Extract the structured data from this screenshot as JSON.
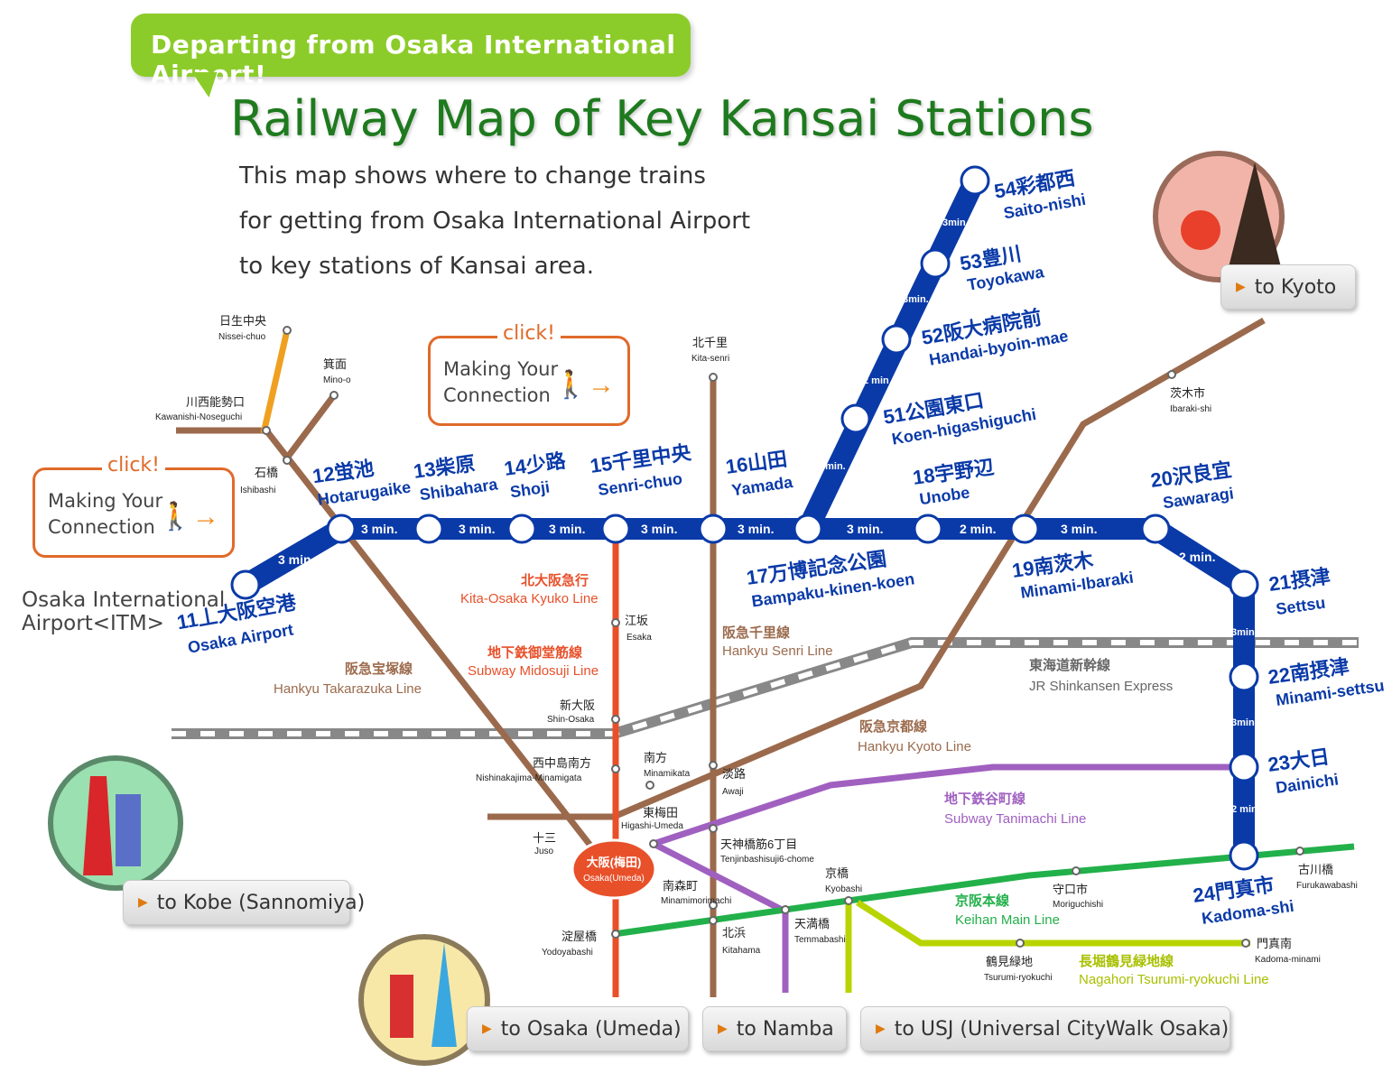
{
  "header": {
    "banner": "Departing from Osaka International Airport!",
    "title": "Railway Map of Key Kansai Stations",
    "intro_lines": [
      "This map shows where to change trains",
      "for getting from  Osaka International Airport",
      "to key stations of  Kansai area."
    ]
  },
  "click_boxes": [
    {
      "click": "click!",
      "line1": "Making Your",
      "line2": "Connection"
    },
    {
      "click": "click!",
      "line1": "Making Your",
      "line2": "Connection"
    }
  ],
  "buttons": {
    "kyoto": "to Kyoto",
    "kobe": "to Kobe (Sannomiya)",
    "osaka": "to Osaka (Umeda)",
    "namba": "to Namba",
    "usj": "to USJ (Universal CityWalk Osaka)"
  },
  "airport_label": {
    "line1": "Osaka International",
    "line2": "Airport<ITM>"
  },
  "colors": {
    "monorail": "#0a3aa8",
    "hankyu": "#9b6a4c",
    "kita_osaka": "#e8502a",
    "tanimachi": "#a060c0",
    "keihan": "#22b04a",
    "nagahori": "#b8d400",
    "nose": "#f0a020",
    "shinkansen": "#888888",
    "green_title": "#1e7a1e"
  },
  "monorail_stations": [
    {
      "num": "11",
      "jp": "大阪空港",
      "en": "Osaka Airport",
      "sub": "丄"
    },
    {
      "num": "12",
      "jp": "蛍池",
      "en": "Hotarugaike"
    },
    {
      "num": "13",
      "jp": "柴原",
      "en": "Shibahara"
    },
    {
      "num": "14",
      "jp": "少路",
      "en": "Shoji"
    },
    {
      "num": "15",
      "jp": "千里中央",
      "en": "Senri-chuo"
    },
    {
      "num": "16",
      "jp": "山田",
      "en": "Yamada"
    },
    {
      "num": "17",
      "jp": "万博記念公園",
      "en": "Bampaku-kinen-koen"
    },
    {
      "num": "18",
      "jp": "宇野辺",
      "en": "Unobe"
    },
    {
      "num": "19",
      "jp": "南茨木",
      "en": "Minami-Ibaraki"
    },
    {
      "num": "20",
      "jp": "沢良宜",
      "en": "Sawaragi"
    },
    {
      "num": "21",
      "jp": "摂津",
      "en": "Settsu"
    },
    {
      "num": "22",
      "jp": "南摂津",
      "en": "Minami-settsu"
    },
    {
      "num": "23",
      "jp": "大日",
      "en": "Dainichi"
    },
    {
      "num": "24",
      "jp": "門真市",
      "en": "Kadoma-shi"
    },
    {
      "num": "51",
      "jp": "公園東口",
      "en": "Koen-higashiguchi"
    },
    {
      "num": "52",
      "jp": "阪大病院前",
      "en": "Handai-byoin-mae"
    },
    {
      "num": "53",
      "jp": "豊川",
      "en": "Toyokawa"
    },
    {
      "num": "54",
      "jp": "彩都西",
      "en": "Saito-nishi"
    }
  ],
  "times": [
    "3 min.",
    "2 min.",
    "3min.",
    "2 min",
    "3 min"
  ],
  "line_names": {
    "kita_osaka_jp": "北大阪急行",
    "kita_osaka_en": "Kita-Osaka Kyuko Line",
    "midosuji_jp": "地下鉄御堂筋線",
    "midosuji_en": "Subway Midosuji Line",
    "senri_jp": "阪急千里線",
    "senri_en": "Hankyu Senri Line",
    "takarazuka_jp": "阪急宝塚線",
    "takarazuka_en": "Hankyu Takarazuka Line",
    "shinkansen_jp": "東海道新幹線",
    "shinkansen_en": "JR Shinkansen Express",
    "kyoto_jp": "阪急京都線",
    "kyoto_en": "Hankyu Kyoto Line",
    "tanimachi_jp": "地下鉄谷町線",
    "tanimachi_en": "Subway Tanimachi Line",
    "keihan_jp": "京阪本線",
    "keihan_en": "Keihan Main Line",
    "nagahori_jp": "長堀鶴見緑地線",
    "nagahori_en": "Nagahori Tsurumi-ryokuchi Line"
  },
  "other_stations": [
    {
      "jp": "日生中央",
      "en": "Nissei-chuo"
    },
    {
      "jp": "箕面",
      "en": "Mino-o"
    },
    {
      "jp": "川西能勢口",
      "en": "Kawanishi-Noseguchi"
    },
    {
      "jp": "石橋",
      "en": "Ishibashi"
    },
    {
      "jp": "北千里",
      "en": "Kita-senri"
    },
    {
      "jp": "茨木市",
      "en": "Ibaraki-shi"
    },
    {
      "jp": "江坂",
      "en": "Esaka"
    },
    {
      "jp": "新大阪",
      "en": "Shin-Osaka"
    },
    {
      "jp": "西中島南方",
      "en": "Nishinakajima-Minamigata"
    },
    {
      "jp": "南方",
      "en": "Minamikata"
    },
    {
      "jp": "淡路",
      "en": "Awaji"
    },
    {
      "jp": "東梅田",
      "en": "Higashi-Umeda"
    },
    {
      "jp": "十三",
      "en": "Juso"
    },
    {
      "jp": "大阪(梅田)",
      "en": "Osaka(Umeda)"
    },
    {
      "jp": "天神橋筋6丁目",
      "en": "Tenjinbashisuji6-chome"
    },
    {
      "jp": "京橋",
      "en": "Kyobashi"
    },
    {
      "jp": "南森町",
      "en": "Minamimorimachi"
    },
    {
      "jp": "北浜",
      "en": "Kitahama"
    },
    {
      "jp": "天満橋",
      "en": "Temmabashi"
    },
    {
      "jp": "淀屋橋",
      "en": "Yodoyabashi"
    },
    {
      "jp": "守口市",
      "en": "Moriguchishi"
    },
    {
      "jp": "古川橋",
      "en": "Furukawabashi"
    },
    {
      "jp": "鶴見緑地",
      "en": "Tsurumi-ryokuchi"
    },
    {
      "jp": "門真南",
      "en": "Kadoma-minami"
    }
  ]
}
